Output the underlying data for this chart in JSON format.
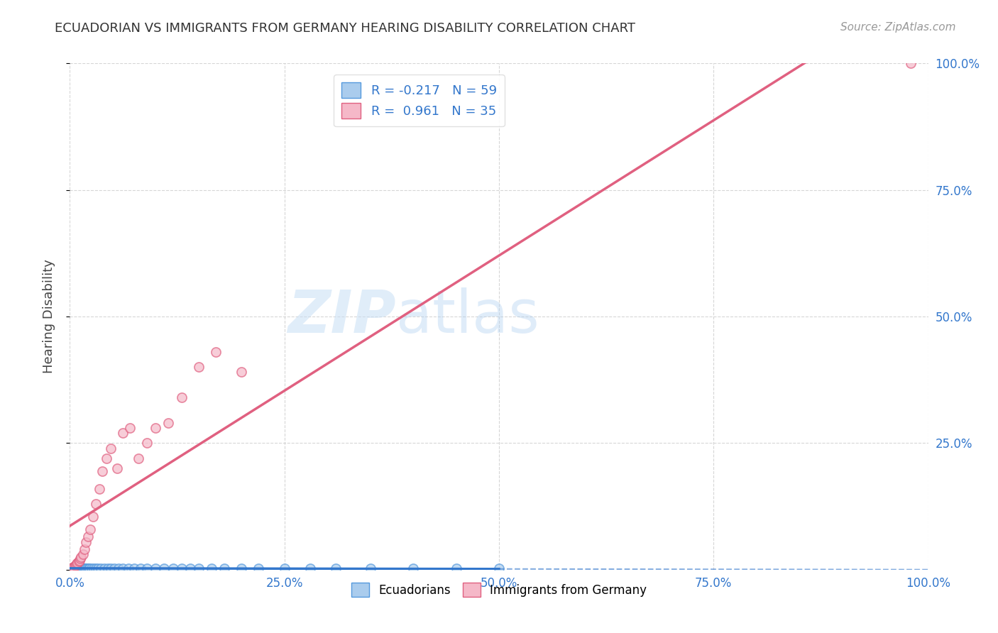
{
  "title": "ECUADORIAN VS IMMIGRANTS FROM GERMANY HEARING DISABILITY CORRELATION CHART",
  "source": "Source: ZipAtlas.com",
  "ylabel": "Hearing Disability",
  "xlim": [
    0.0,
    1.0
  ],
  "ylim": [
    0.0,
    1.0
  ],
  "xticks": [
    0.0,
    0.25,
    0.5,
    0.75,
    1.0
  ],
  "xtick_labels": [
    "0.0%",
    "25.0%",
    "50.0%",
    "75.0%",
    "100.0%"
  ],
  "ytick_labels": [
    "",
    "25.0%",
    "50.0%",
    "75.0%",
    "100.0%"
  ],
  "yticks": [
    0.0,
    0.25,
    0.5,
    0.75,
    1.0
  ],
  "background_color": "#ffffff",
  "grid_color": "#cccccc",
  "blue_fill": "#aacced",
  "blue_edge": "#5599dd",
  "pink_fill": "#f5b8c8",
  "pink_edge": "#e06080",
  "blue_line_color": "#3377cc",
  "blue_line_dash_color": "#aaccee",
  "pink_line_color": "#e06080",
  "blue_r": -0.217,
  "blue_n": 59,
  "pink_r": 0.961,
  "pink_n": 35,
  "watermark_zip": "ZIP",
  "watermark_atlas": "atlas",
  "legend_label_blue": "Ecuadorians",
  "legend_label_pink": "Immigrants from Germany",
  "blue_scatter_x": [
    0.002,
    0.003,
    0.004,
    0.005,
    0.006,
    0.006,
    0.007,
    0.007,
    0.008,
    0.008,
    0.009,
    0.009,
    0.01,
    0.01,
    0.011,
    0.011,
    0.012,
    0.013,
    0.014,
    0.015,
    0.016,
    0.017,
    0.018,
    0.019,
    0.02,
    0.022,
    0.023,
    0.025,
    0.028,
    0.03,
    0.033,
    0.036,
    0.04,
    0.044,
    0.048,
    0.052,
    0.057,
    0.062,
    0.068,
    0.075,
    0.082,
    0.09,
    0.1,
    0.11,
    0.12,
    0.13,
    0.14,
    0.15,
    0.165,
    0.18,
    0.2,
    0.22,
    0.25,
    0.28,
    0.31,
    0.35,
    0.4,
    0.45,
    0.5
  ],
  "blue_scatter_y": [
    0.003,
    0.002,
    0.004,
    0.002,
    0.003,
    0.005,
    0.002,
    0.004,
    0.003,
    0.005,
    0.002,
    0.004,
    0.003,
    0.005,
    0.002,
    0.004,
    0.003,
    0.002,
    0.003,
    0.002,
    0.003,
    0.002,
    0.003,
    0.002,
    0.003,
    0.002,
    0.003,
    0.002,
    0.003,
    0.002,
    0.003,
    0.002,
    0.002,
    0.003,
    0.002,
    0.002,
    0.003,
    0.002,
    0.003,
    0.002,
    0.002,
    0.002,
    0.003,
    0.002,
    0.002,
    0.002,
    0.003,
    0.002,
    0.002,
    0.002,
    0.002,
    0.002,
    0.002,
    0.002,
    0.002,
    0.002,
    0.002,
    0.002,
    0.002
  ],
  "pink_scatter_x": [
    0.002,
    0.003,
    0.004,
    0.005,
    0.006,
    0.007,
    0.008,
    0.009,
    0.01,
    0.011,
    0.012,
    0.013,
    0.015,
    0.017,
    0.019,
    0.021,
    0.024,
    0.027,
    0.03,
    0.034,
    0.038,
    0.043,
    0.048,
    0.055,
    0.062,
    0.07,
    0.08,
    0.09,
    0.1,
    0.115,
    0.13,
    0.15,
    0.17,
    0.2,
    0.98
  ],
  "pink_scatter_y": [
    0.003,
    0.004,
    0.005,
    0.006,
    0.008,
    0.01,
    0.012,
    0.014,
    0.016,
    0.018,
    0.022,
    0.025,
    0.03,
    0.04,
    0.055,
    0.065,
    0.08,
    0.105,
    0.13,
    0.16,
    0.195,
    0.22,
    0.24,
    0.2,
    0.27,
    0.28,
    0.22,
    0.25,
    0.28,
    0.29,
    0.34,
    0.4,
    0.43,
    0.39,
    1.0
  ],
  "blue_line_x_solid_end": 0.5,
  "blue_line_x_dash_start": 0.5
}
